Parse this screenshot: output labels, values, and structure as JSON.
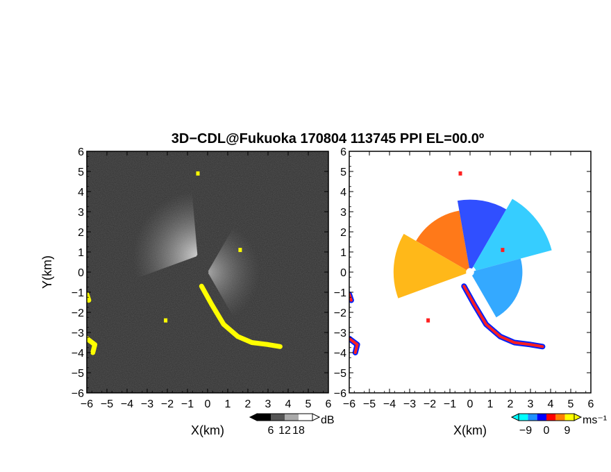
{
  "chart_data": {
    "title": "3D−CDL@Fukuoka 170804 113745 PPI EL=00.0º",
    "type": "heatmap",
    "panels": [
      {
        "name": "signal-intensity",
        "xlabel": "X(km)",
        "ylabel": "Y(km)",
        "xlim": [
          -6,
          6
        ],
        "ylim": [
          -6,
          6
        ],
        "x_ticks": [
          "−6",
          "−5",
          "−4",
          "−3",
          "−2",
          "−1",
          "0",
          "1",
          "2",
          "3",
          "4",
          "5",
          "6"
        ],
        "y_ticks": [
          "6",
          "5",
          "4",
          "3",
          "2",
          "1",
          "0",
          "−1",
          "−2",
          "−3",
          "−4",
          "−5",
          "−6"
        ],
        "background_color": "#303030",
        "colorbar": {
          "unit": "dB",
          "ticks": [
            "6",
            "12",
            "18"
          ],
          "tick_values": [
            6,
            12,
            18
          ],
          "range": [
            0,
            24
          ],
          "colors": [
            "#000000",
            "#555555",
            "#aaaaaa",
            "#ffffff"
          ]
        },
        "highlight_color": "#ffff00",
        "echo_sector": {
          "center_km": [
            -0.5,
            0.8
          ],
          "angle_range_deg": [
            95,
            200
          ],
          "max_range_km": 3.2
        },
        "highlighted_regions_km": [
          {
            "label": "front",
            "points": [
              [
                -0.3,
                -0.7
              ],
              [
                0.2,
                -1.6
              ],
              [
                0.8,
                -2.6
              ],
              [
                1.5,
                -3.2
              ],
              [
                2.2,
                -3.5
              ],
              [
                3.0,
                -3.6
              ],
              [
                3.6,
                -3.7
              ]
            ]
          },
          {
            "label": "west-edge",
            "points": [
              [
                -6.0,
                -1.1
              ],
              [
                -5.9,
                -1.4
              ]
            ]
          },
          {
            "label": "southwest",
            "points": [
              [
                -6.0,
                -3.3
              ],
              [
                -5.6,
                -3.6
              ],
              [
                -5.7,
                -4.0
              ]
            ]
          },
          {
            "label": "small-1",
            "points": [
              [
                -2.1,
                -2.4
              ]
            ]
          },
          {
            "label": "small-2",
            "points": [
              [
                -0.5,
                4.9
              ]
            ]
          },
          {
            "label": "small-3",
            "points": [
              [
                1.6,
                1.1
              ]
            ]
          }
        ]
      },
      {
        "name": "radial-velocity",
        "xlabel": "X(km)",
        "ylabel": "",
        "xlim": [
          -6,
          6
        ],
        "ylim": [
          -6,
          6
        ],
        "x_ticks": [
          "−6",
          "−5",
          "−4",
          "−3",
          "−2",
          "−1",
          "0",
          "1",
          "2",
          "3",
          "4",
          "5",
          "6"
        ],
        "y_ticks": [
          "6",
          "5",
          "4",
          "3",
          "2",
          "1",
          "0",
          "−1",
          "−2",
          "−3",
          "−4",
          "−5",
          "−6"
        ],
        "background_color": "#ffffff",
        "colorbar": {
          "unit": "ms⁻¹",
          "ticks": [
            "−9",
            "0",
            "9"
          ],
          "tick_values": [
            -9,
            0,
            9
          ],
          "range": [
            -12,
            12
          ],
          "colors": [
            "#00ffff",
            "#1e90ff",
            "#0000ff",
            "#ff0000",
            "#ff8000",
            "#ffff00"
          ]
        },
        "velocity_sectors": [
          {
            "angle_range_deg": [
              100,
              150
            ],
            "range_km": [
              0.2,
              3.1
            ],
            "velocity_ms": 7,
            "color": "#ff6a00"
          },
          {
            "angle_range_deg": [
              150,
              200
            ],
            "range_km": [
              0.2,
              3.8
            ],
            "velocity_ms": 9,
            "color": "#ffb000"
          },
          {
            "angle_range_deg": [
              60,
              100
            ],
            "range_km": [
              0.2,
              3.6
            ],
            "velocity_ms": -6,
            "color": "#1a3cff"
          },
          {
            "angle_range_deg": [
              15,
              60
            ],
            "range_km": [
              0.3,
              4.2
            ],
            "velocity_ms": -10,
            "color": "#20c8ff"
          },
          {
            "angle_range_deg": [
              -60,
              15
            ],
            "range_km": [
              0.2,
              2.6
            ],
            "velocity_ms": -10,
            "color": "#1ea0ff"
          }
        ],
        "front_color": "#ff2020",
        "front_edge_color": "#0020ff"
      }
    ]
  }
}
